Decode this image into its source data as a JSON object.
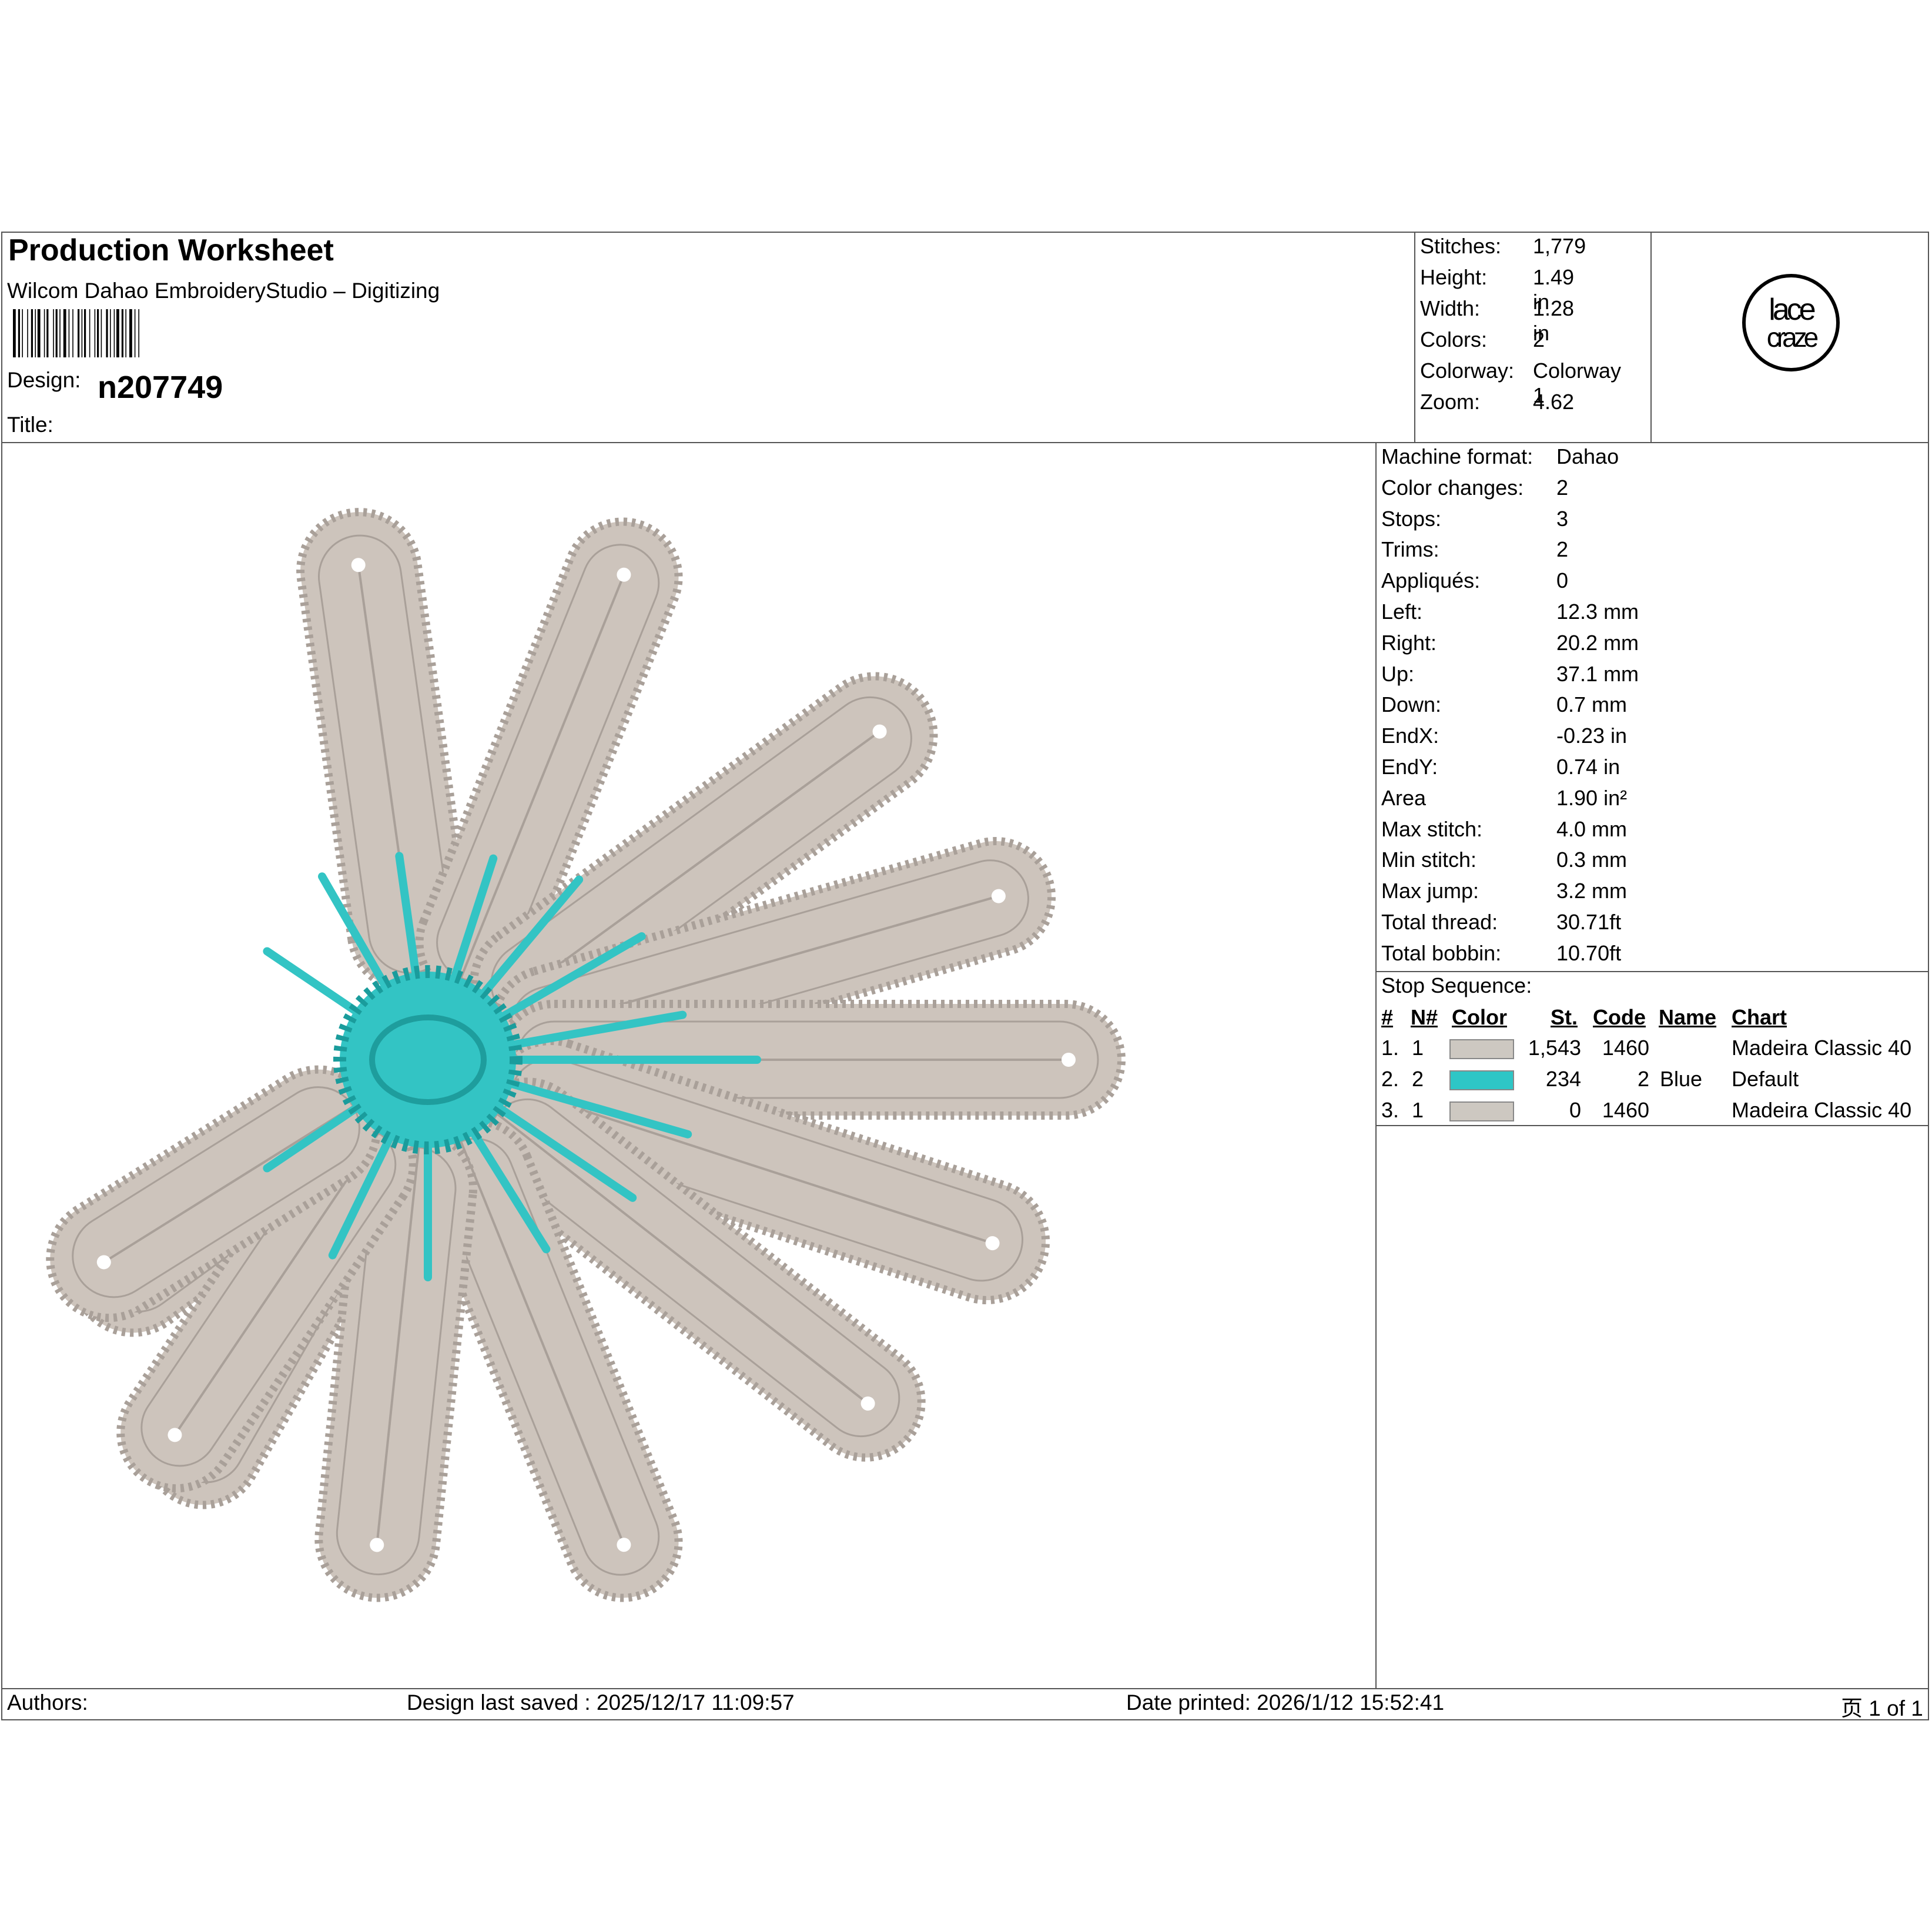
{
  "header": {
    "title": "Production Worksheet",
    "subtitle": "Wilcom Dahao EmbroideryStudio – Digitizing",
    "design_label": "Design:",
    "design_value": "n207749",
    "title_label": "Title:"
  },
  "summary": [
    {
      "label": "Stitches:",
      "value": "1,779"
    },
    {
      "label": "Height:",
      "value": "1.49 in"
    },
    {
      "label": "Width:",
      "value": "1.28 in"
    },
    {
      "label": "Colors:",
      "value": "2"
    },
    {
      "label": "Colorway:",
      "value": "Colorway 1"
    },
    {
      "label": "Zoom:",
      "value": "4.62"
    }
  ],
  "logo": {
    "line1": "lace",
    "line2": "craze",
    "icon": "lacecraze-logo"
  },
  "machine_info": [
    {
      "label": "Machine format:",
      "value": "Dahao"
    },
    {
      "label": "Color changes:",
      "value": "2"
    },
    {
      "label": "Stops:",
      "value": "3"
    },
    {
      "label": "Trims:",
      "value": "2"
    },
    {
      "label": "Appliqués:",
      "value": "0"
    },
    {
      "label": "Left:",
      "value": "12.3 mm"
    },
    {
      "label": "Right:",
      "value": "20.2 mm"
    },
    {
      "label": "Up:",
      "value": "37.1 mm"
    },
    {
      "label": "Down:",
      "value": "0.7 mm"
    },
    {
      "label": "EndX:",
      "value": "-0.23 in"
    },
    {
      "label": "EndY:",
      "value": "0.74 in"
    },
    {
      "label": "Area",
      "value": "  1.90 in²"
    },
    {
      "label": "Max stitch:",
      "value": "4.0 mm"
    },
    {
      "label": "Min stitch:",
      "value": "0.3 mm"
    },
    {
      "label": "Max jump:",
      "value": "3.2 mm"
    },
    {
      "label": "Total thread:",
      "value": "30.71ft"
    },
    {
      "label": "Total bobbin:",
      "value": "10.70ft"
    }
  ],
  "stop_sequence": {
    "title": "Stop Sequence:",
    "headers": {
      "idx": "#",
      "n": "N#",
      "color": "Color",
      "st": "St.",
      "code": "Code",
      "name": "Name",
      "chart": "Chart"
    },
    "rows": [
      {
        "idx": "1.",
        "n": "1",
        "color": "#cdc8c1",
        "st": "1,543",
        "code": "1460",
        "name": "",
        "chart": "Madeira Classic 40"
      },
      {
        "idx": "2.",
        "n": "2",
        "color": "#2ec6c6",
        "st": "234",
        "code": "2",
        "name": "Blue",
        "chart": "Default"
      },
      {
        "idx": "3.",
        "n": "1",
        "color": "#cdc8c1",
        "st": "0",
        "code": "1460",
        "name": "",
        "chart": "Madeira Classic 40"
      }
    ]
  },
  "design_preview": {
    "thread_color": "#cdc4bc",
    "thread_shade": "#a9a099",
    "accent_color": "#33c4c4",
    "subject": "embroidered-flower"
  },
  "footer": {
    "authors": "Authors:",
    "saved": "Design last saved : 2025/12/17 11:09:57",
    "printed": "Date printed: 2026/1/12 15:52:41",
    "page": "页 1 of 1"
  }
}
